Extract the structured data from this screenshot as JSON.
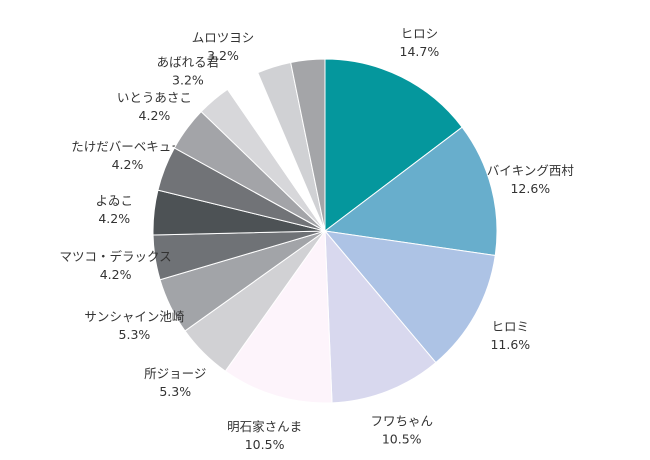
{
  "chart_data": {
    "type": "pie",
    "title": "",
    "start_angle_deg": 0,
    "direction": "clockwise",
    "slices": [
      {
        "label": "ヒロシ",
        "value": 14.7,
        "value_label": "14.7%",
        "color": "#05979d"
      },
      {
        "label": "バイキング西村",
        "value": 12.6,
        "value_label": "12.6%",
        "color": "#68aecc"
      },
      {
        "label": "ヒロミ",
        "value": 11.6,
        "value_label": "11.6%",
        "color": "#adc3e5"
      },
      {
        "label": "フワちゃん",
        "value": 10.5,
        "value_label": "10.5%",
        "color": "#d8d8ee"
      },
      {
        "label": "明石家さんま",
        "value": 10.5,
        "value_label": "10.5%",
        "color": "#fdf4fb"
      },
      {
        "label": "所ジョージ",
        "value": 5.3,
        "value_label": "5.3%",
        "color": "#d1d1d4"
      },
      {
        "label": "サンシャイン池崎",
        "value": 5.3,
        "value_label": "5.3%",
        "color": "#a2a4a8"
      },
      {
        "label": "マツコ・デラックス",
        "value": 4.2,
        "value_label": "4.2%",
        "color": "#6f7276"
      },
      {
        "label": "よゐこ",
        "value": 4.2,
        "value_label": "4.2%",
        "color": "#4d5255"
      },
      {
        "label": "たけだバーベキュー",
        "value": 4.2,
        "value_label": "4.2%",
        "color": "#717377"
      },
      {
        "label": "いとうあさこ",
        "value": 4.2,
        "value_label": "4.2%",
        "color": "#a3a4a8"
      },
      {
        "label": "あばれる君",
        "value": 3.2,
        "value_label": "3.2%",
        "color": "#d7d7da"
      },
      {
        "label": "ムロツヨシ",
        "value": 3.2,
        "value_label": "3.2%",
        "color": "#ffffff"
      },
      {
        "label": "",
        "value": 3.2,
        "value_label": "",
        "color": "#d0d1d4"
      },
      {
        "label": "",
        "value": 3.2,
        "value_label": "",
        "color": "#a4a5a8"
      }
    ]
  }
}
